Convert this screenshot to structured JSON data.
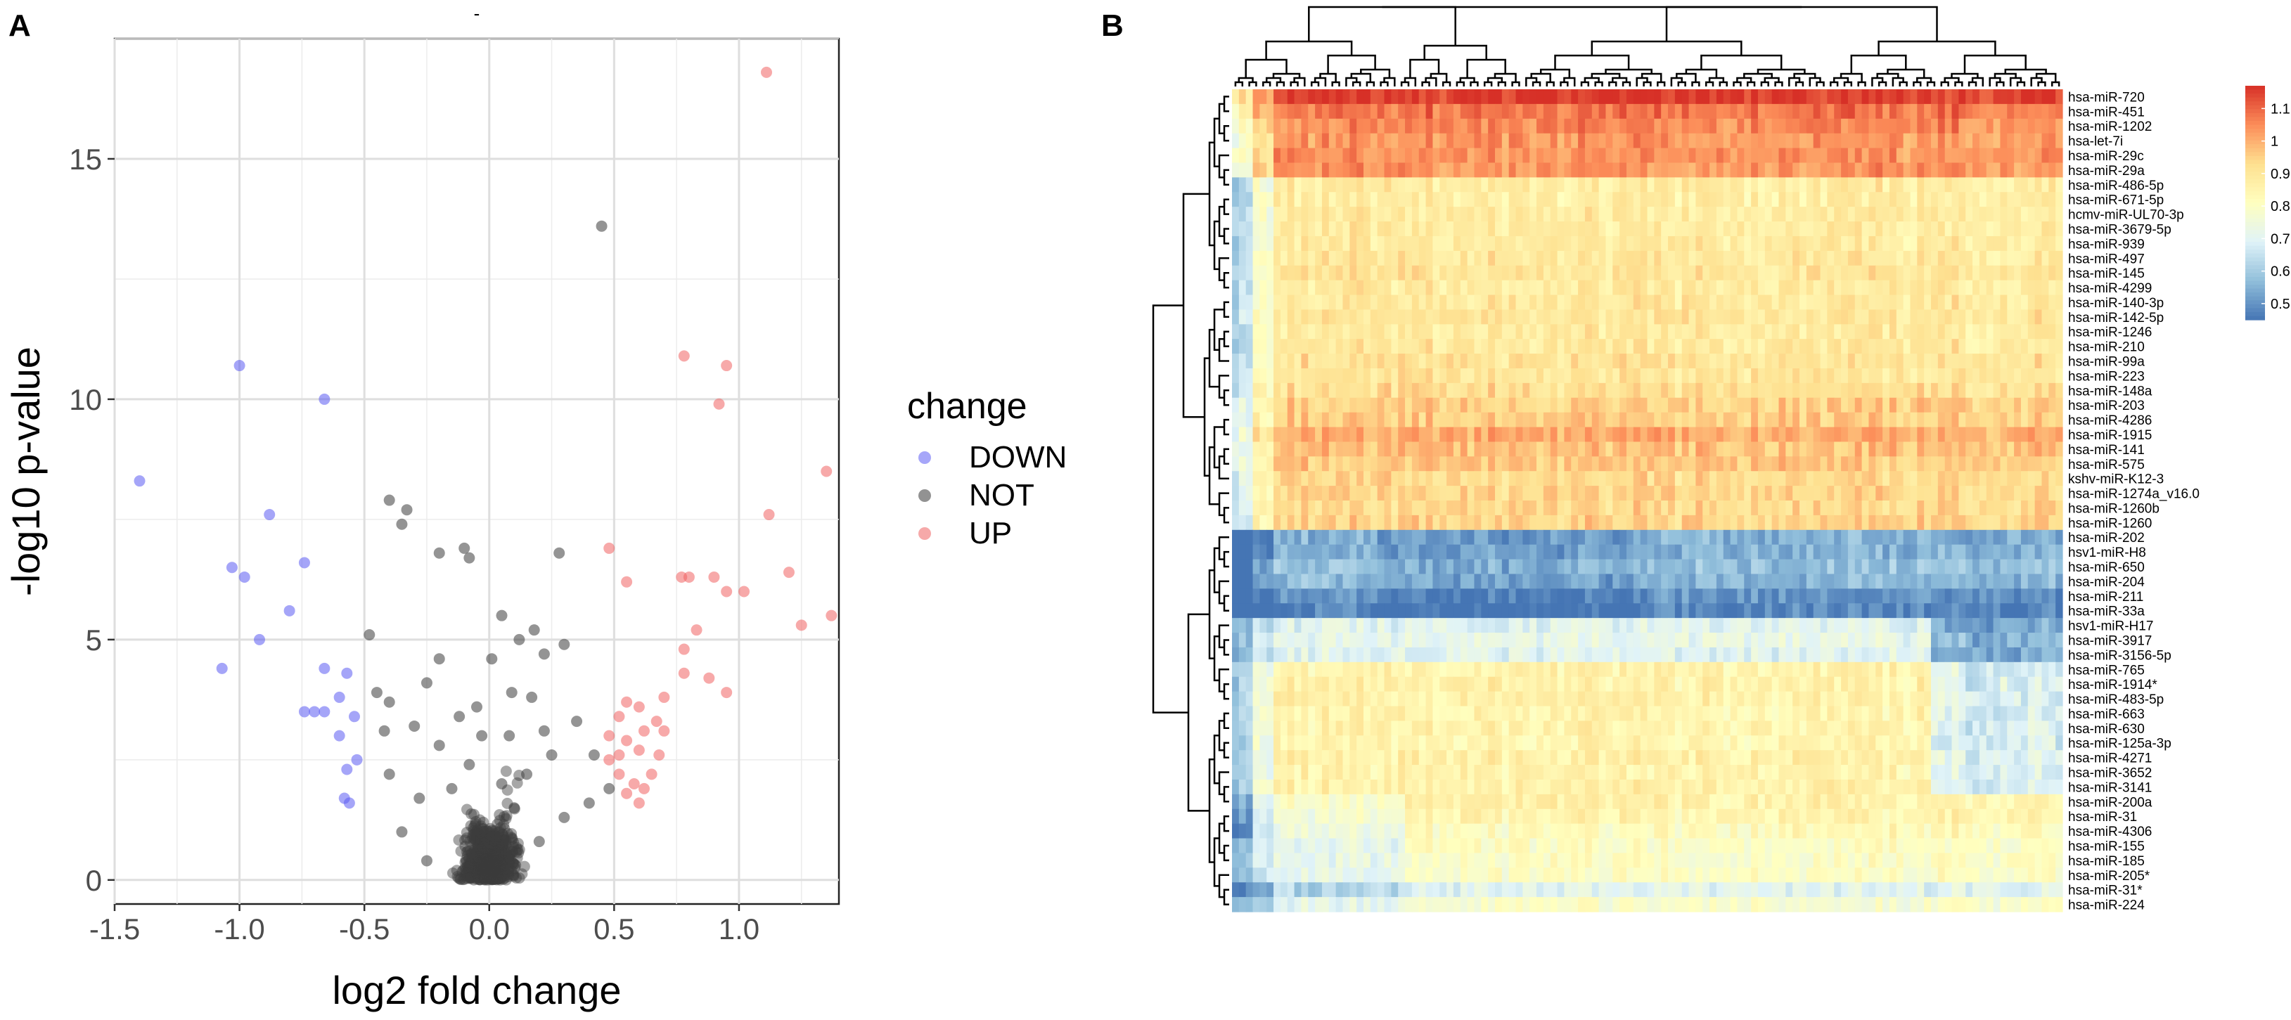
{
  "panels": {
    "a_label": "A",
    "b_label": "B"
  },
  "chart_data": [
    {
      "type": "scatter",
      "title": "-",
      "xlabel": "log2 fold change",
      "ylabel": "-log10 p-value",
      "xlim": [
        -1.5,
        1.4
      ],
      "ylim": [
        -0.5,
        17.5
      ],
      "x_ticks": [
        "-1.5",
        "-1.0",
        "-0.5",
        "0.0",
        "0.5",
        "1.0"
      ],
      "x_tick_values": [
        -1.5,
        -1.0,
        -0.5,
        0.0,
        0.5,
        1.0
      ],
      "y_ticks": [
        "0",
        "5",
        "10",
        "15"
      ],
      "y_tick_values": [
        0,
        5,
        10,
        15
      ],
      "grid": true,
      "legend": {
        "title": "change",
        "position": "right",
        "entries": [
          {
            "label": "DOWN",
            "color": "#6b6bf5"
          },
          {
            "label": "NOT",
            "color": "#4a4a4a"
          },
          {
            "label": "UP",
            "color": "#f07070"
          }
        ]
      },
      "series": [
        {
          "name": "DOWN",
          "color": "#5b5bf2",
          "points": [
            [
              -1.4,
              8.3
            ],
            [
              -1.0,
              10.7
            ],
            [
              -0.66,
              10.0
            ],
            [
              -0.88,
              7.6
            ],
            [
              -1.03,
              6.5
            ],
            [
              -0.98,
              6.3
            ],
            [
              -0.74,
              6.6
            ],
            [
              -0.8,
              5.6
            ],
            [
              -0.92,
              5.0
            ],
            [
              -1.07,
              4.4
            ],
            [
              -0.66,
              4.4
            ],
            [
              -0.57,
              4.3
            ],
            [
              -0.6,
              3.8
            ],
            [
              -0.66,
              3.5
            ],
            [
              -0.7,
              3.5
            ],
            [
              -0.74,
              3.5
            ],
            [
              -0.54,
              3.4
            ],
            [
              -0.6,
              3.0
            ],
            [
              -0.53,
              2.5
            ],
            [
              -0.57,
              2.3
            ],
            [
              -0.58,
              1.7
            ],
            [
              -0.56,
              1.6
            ]
          ]
        },
        {
          "name": "NOT",
          "color": "#3c3c3c",
          "points": [
            [
              0.45,
              13.6
            ],
            [
              -0.2,
              6.8
            ],
            [
              -0.4,
              7.9
            ],
            [
              -0.33,
              7.7
            ],
            [
              -0.35,
              7.4
            ],
            [
              -0.1,
              6.9
            ],
            [
              -0.08,
              6.7
            ],
            [
              0.28,
              6.8
            ],
            [
              -0.48,
              5.1
            ],
            [
              0.12,
              5.0
            ],
            [
              0.18,
              5.2
            ],
            [
              0.22,
              4.7
            ],
            [
              -0.45,
              3.9
            ],
            [
              -0.4,
              3.7
            ],
            [
              -0.2,
              4.6
            ],
            [
              -0.25,
              4.1
            ],
            [
              0.05,
              5.5
            ],
            [
              0.3,
              4.9
            ],
            [
              -0.3,
              3.2
            ],
            [
              0.35,
              3.3
            ],
            [
              0.42,
              2.6
            ],
            [
              0.48,
              1.9
            ],
            [
              -0.4,
              2.2
            ],
            [
              -0.42,
              3.1
            ],
            [
              0.25,
              2.6
            ],
            [
              0.4,
              1.6
            ],
            [
              -0.28,
              1.7
            ],
            [
              0.17,
              3.8
            ],
            [
              0.01,
              4.6
            ],
            [
              -0.05,
              3.6
            ],
            [
              -0.12,
              3.4
            ],
            [
              0.08,
              3.0
            ],
            [
              -0.2,
              2.8
            ],
            [
              0.15,
              2.2
            ],
            [
              -0.15,
              1.9
            ],
            [
              0.3,
              1.3
            ],
            [
              -0.35,
              1.0
            ],
            [
              0.2,
              0.8
            ],
            [
              -0.25,
              0.4
            ],
            [
              0.1,
              1.5
            ],
            [
              -0.08,
              2.4
            ],
            [
              0.05,
              2.0
            ],
            [
              0.09,
              3.9
            ],
            [
              -0.03,
              3.0
            ],
            [
              0.22,
              3.1
            ]
          ]
        },
        {
          "name": "UP",
          "color": "#f06262",
          "points": [
            [
              1.11,
              16.8
            ],
            [
              0.78,
              10.9
            ],
            [
              0.95,
              10.7
            ],
            [
              0.92,
              9.9
            ],
            [
              1.35,
              8.5
            ],
            [
              1.12,
              7.6
            ],
            [
              0.48,
              6.9
            ],
            [
              0.55,
              6.2
            ],
            [
              0.77,
              6.3
            ],
            [
              0.8,
              6.3
            ],
            [
              0.9,
              6.3
            ],
            [
              0.95,
              6.0
            ],
            [
              1.02,
              6.0
            ],
            [
              1.2,
              6.4
            ],
            [
              1.37,
              5.5
            ],
            [
              1.25,
              5.3
            ],
            [
              0.83,
              5.2
            ],
            [
              0.78,
              4.8
            ],
            [
              0.88,
              4.2
            ],
            [
              0.78,
              4.3
            ],
            [
              0.95,
              3.9
            ],
            [
              0.7,
              3.8
            ],
            [
              0.55,
              3.7
            ],
            [
              0.6,
              3.6
            ],
            [
              0.52,
              3.4
            ],
            [
              0.67,
              3.3
            ],
            [
              0.62,
              3.1
            ],
            [
              0.55,
              2.9
            ],
            [
              0.6,
              2.7
            ],
            [
              0.52,
              2.6
            ],
            [
              0.48,
              2.5
            ],
            [
              0.65,
              2.2
            ],
            [
              0.58,
              2.0
            ],
            [
              0.52,
              2.2
            ],
            [
              0.62,
              1.9
            ],
            [
              0.55,
              1.8
            ],
            [
              0.6,
              1.6
            ],
            [
              0.68,
              2.6
            ],
            [
              0.7,
              3.1
            ],
            [
              0.48,
              3.0
            ]
          ]
        }
      ]
    },
    {
      "type": "heatmap",
      "title": "",
      "colorbar_ticks": [
        "1.1",
        "1",
        "0.9",
        "0.8",
        "0.7",
        "0.6",
        "0.5"
      ],
      "colorbar_tick_values": [
        1.1,
        1.0,
        0.9,
        0.8,
        0.7,
        0.6,
        0.5
      ],
      "value_range": [
        0.45,
        1.17
      ],
      "color_scale": [
        "#4575b4",
        "#91bfdb",
        "#e0f3f8",
        "#ffffbf",
        "#fee090",
        "#fc8d59",
        "#d73027"
      ],
      "n_columns": 120,
      "row_labels": [
        "hsa-miR-720",
        "hsa-miR-451",
        "hsa-miR-1202",
        "hsa-let-7i",
        "hsa-miR-29c",
        "hsa-miR-29a",
        "hsa-miR-486-5p",
        "hsa-miR-671-5p",
        "hcmv-miR-UL70-3p",
        "hsa-miR-3679-5p",
        "hsa-miR-939",
        "hsa-miR-497",
        "hsa-miR-145",
        "hsa-miR-4299",
        "hsa-miR-140-3p",
        "hsa-miR-142-5p",
        "hsa-miR-1246",
        "hsa-miR-210",
        "hsa-miR-99a",
        "hsa-miR-223",
        "hsa-miR-148a",
        "hsa-miR-203",
        "hsa-miR-4286",
        "hsa-miR-1915",
        "hsa-miR-141",
        "hsa-miR-575",
        "kshv-miR-K12-3",
        "hsa-miR-1274a_v16.0",
        "hsa-miR-1260b",
        "hsa-miR-1260",
        "hsa-miR-202",
        "hsv1-miR-H8",
        "hsa-miR-650",
        "hsa-miR-204",
        "hsa-miR-211",
        "hsa-miR-33a",
        "hsv1-miR-H17",
        "hsa-miR-3917",
        "hsa-miR-3156-5p",
        "hsa-miR-765",
        "hsa-miR-1914*",
        "hsa-miR-483-5p",
        "hsa-miR-663",
        "hsa-miR-630",
        "hsa-miR-125a-3p",
        "hsa-miR-4271",
        "hsa-miR-3652",
        "hsa-miR-3141",
        "hsa-miR-200a",
        "hsa-miR-31",
        "hsa-miR-4306",
        "hsa-miR-155",
        "hsa-miR-185",
        "hsa-miR-205*",
        "hsa-miR-31*",
        "hsa-miR-224"
      ],
      "row_base_values": [
        1.15,
        1.08,
        1.05,
        1.03,
        1.04,
        1.03,
        0.88,
        0.87,
        0.88,
        0.88,
        0.88,
        0.89,
        0.9,
        0.88,
        0.89,
        0.9,
        0.88,
        0.89,
        0.91,
        0.9,
        0.92,
        0.95,
        0.95,
        1.0,
        0.97,
        0.96,
        0.93,
        0.94,
        0.93,
        0.94,
        0.55,
        0.55,
        0.58,
        0.56,
        0.5,
        0.48,
        0.7,
        0.72,
        0.7,
        0.85,
        0.86,
        0.86,
        0.85,
        0.85,
        0.84,
        0.86,
        0.85,
        0.86,
        0.86,
        0.85,
        0.82,
        0.8,
        0.8,
        0.8,
        0.7,
        0.78
      ]
    }
  ]
}
